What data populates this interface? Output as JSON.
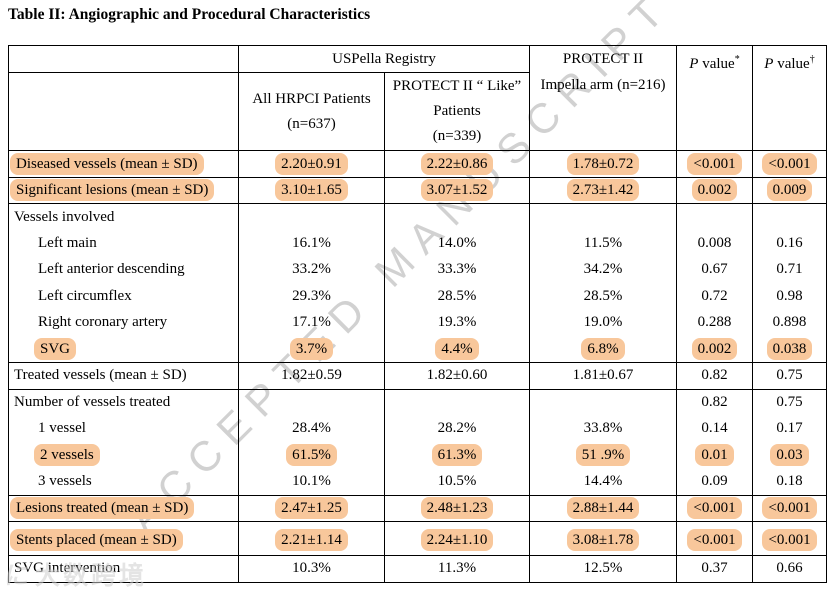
{
  "title": "Table II: Angiographic and Procedural Characteristics",
  "watermark": {
    "text": "ACCEPTED MANUSCRIPT",
    "corner_logo": "に",
    "corner": "大数跨境"
  },
  "colors": {
    "highlight": "#f8c79b",
    "border": "#000000",
    "watermark_gray": "#c6c6c6"
  },
  "table": {
    "header": {
      "group": "USPella Registry",
      "col1": {
        "line1": "All HRPCI Patients",
        "line2": "(n=637)"
      },
      "col2": {
        "line1": "PROTECT II “ Like”",
        "line2": "Patients",
        "line3": "(n=339)"
      },
      "col3": {
        "line1": "PROTECT II",
        "line2": "Impella arm (n=216)"
      },
      "p": {
        "italic": "P",
        "text": " value",
        "sup1": "*",
        "sup2": "†"
      }
    },
    "rows": [
      {
        "label": "Diseased vessels (mean ± SD)",
        "indent": false,
        "highlight": true,
        "top_border": true,
        "cells": [
          "2.20±0.91",
          "2.22±0.86",
          "1.78±0.72",
          "<0.001",
          "<0.001"
        ]
      },
      {
        "label": "Significant lesions (mean ± SD)",
        "indent": false,
        "highlight": true,
        "top_border": true,
        "cells": [
          "3.10±1.65",
          "3.07±1.52",
          "2.73±1.42",
          "0.002",
          "0.009"
        ]
      },
      {
        "label": "Vessels involved",
        "indent": false,
        "highlight": false,
        "top_border": true,
        "cells": [
          "",
          "",
          "",
          "",
          ""
        ]
      },
      {
        "label": "Left main",
        "indent": true,
        "highlight": false,
        "top_border": false,
        "cells": [
          "16.1%",
          "14.0%",
          "11.5%",
          "0.008",
          "0.16"
        ]
      },
      {
        "label": "Left anterior descending",
        "indent": true,
        "highlight": false,
        "top_border": false,
        "cells": [
          "33.2%",
          "33.3%",
          "34.2%",
          "0.67",
          "0.71"
        ]
      },
      {
        "label": "Left circumflex",
        "indent": true,
        "highlight": false,
        "top_border": false,
        "cells": [
          "29.3%",
          "28.5%",
          "28.5%",
          "0.72",
          "0.98"
        ]
      },
      {
        "label": "Right coronary artery",
        "indent": true,
        "highlight": false,
        "top_border": false,
        "cells": [
          "17.1%",
          "19.3%",
          "19.0%",
          "0.288",
          "0.898"
        ]
      },
      {
        "label": "SVG",
        "indent": true,
        "highlight": true,
        "top_border": false,
        "cells": [
          "3.7%",
          "4.4%",
          "6.8%",
          "0.002",
          "0.038"
        ]
      },
      {
        "label": "Treated vessels (mean ± SD)",
        "indent": false,
        "highlight": false,
        "top_border": true,
        "cells": [
          "1.82±0.59",
          "1.82±0.60",
          "1.81±0.67",
          "0.82",
          "0.75"
        ]
      },
      {
        "label": "Number of vessels treated",
        "indent": false,
        "highlight": false,
        "top_border": true,
        "cells": [
          "",
          "",
          "",
          "0.82",
          "0.75"
        ]
      },
      {
        "label": "1 vessel",
        "indent": true,
        "highlight": false,
        "top_border": false,
        "cells": [
          "28.4%",
          "28.2%",
          "33.8%",
          "0.14",
          "0.17"
        ]
      },
      {
        "label": "2 vessels",
        "indent": true,
        "highlight": true,
        "top_border": false,
        "cells": [
          "61.5%",
          "61.3%",
          "51 .9%",
          "0.01",
          "0.03"
        ]
      },
      {
        "label": "3 vessels",
        "indent": true,
        "highlight": false,
        "top_border": false,
        "cells": [
          "10.1%",
          "10.5%",
          "14.4%",
          "0.09",
          "0.18"
        ]
      },
      {
        "label": "Lesions treated (mean ± SD)",
        "indent": false,
        "highlight": true,
        "top_border": true,
        "cells": [
          "2.47±1.25",
          "2.48±1.23",
          "2.88±1.44",
          "<0.001",
          "<0.001"
        ]
      },
      {
        "label": "Stents placed (mean ± SD)",
        "indent": false,
        "highlight": true,
        "top_border": true,
        "tall": true,
        "cells": [
          "2.21±1.14",
          "2.24±1.10",
          "3.08±1.78",
          "<0.001",
          "<0.001"
        ]
      },
      {
        "label": "SVG intervention",
        "indent": false,
        "highlight": false,
        "top_border": true,
        "cells": [
          "10.3%",
          "11.3%",
          "12.5%",
          "0.37",
          "0.66"
        ]
      }
    ]
  }
}
